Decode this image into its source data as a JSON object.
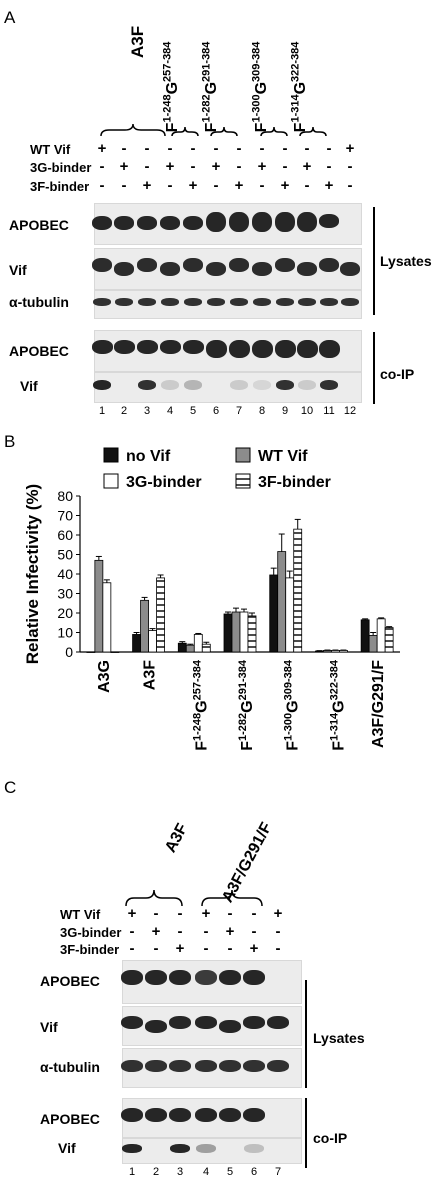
{
  "panelA": {
    "letter": "A",
    "constructs": [
      {
        "label": "A3F",
        "kind": "plain"
      },
      {
        "prefix": "F",
        "sup1": "1-248",
        "mid": "G",
        "sup2": "257-384",
        "kind": "chimera"
      },
      {
        "prefix": "F",
        "sup1": "1-282",
        "mid": "G",
        "sup2": "291-384",
        "kind": "chimera"
      },
      {
        "prefix": "F",
        "sup1": "1-300",
        "mid": "G",
        "sup2": "309-384",
        "kind": "chimera"
      },
      {
        "prefix": "F",
        "sup1": "1-314",
        "mid": "G",
        "sup2": "322-384",
        "kind": "chimera"
      }
    ],
    "conditions": [
      {
        "label": "WT Vif",
        "signs": [
          "+",
          "-",
          "-",
          "-",
          "-",
          "-",
          "-",
          "-",
          "-",
          "-",
          "-",
          "+"
        ]
      },
      {
        "label": "3G-binder",
        "signs": [
          "-",
          "+",
          "-",
          "+",
          "-",
          "+",
          "-",
          "+",
          "-",
          "+",
          "-",
          "-"
        ]
      },
      {
        "label": "3F-binder",
        "signs": [
          "-",
          "-",
          "+",
          "-",
          "+",
          "-",
          "+",
          "-",
          "+",
          "-",
          "+",
          "-"
        ]
      }
    ],
    "blots": [
      "APOBEC",
      "Vif",
      "α-tubulin",
      "APOBEC",
      "Vif"
    ],
    "side_labels": {
      "lysates": "Lysates",
      "coip": "co-IP"
    },
    "lanes": [
      "1",
      "2",
      "3",
      "4",
      "5",
      "6",
      "7",
      "8",
      "9",
      "10",
      "11",
      "12"
    ]
  },
  "panelB": {
    "letter": "B",
    "chart_data": {
      "type": "bar",
      "ylabel": "Relative Infectivity (%)",
      "ylim": [
        0,
        80
      ],
      "yticks": [
        "0",
        "10",
        "20",
        "30",
        "40",
        "50",
        "60",
        "70",
        "80"
      ],
      "categories": [
        {
          "label": "A3G",
          "kind": "plain"
        },
        {
          "label": "A3F",
          "kind": "plain"
        },
        {
          "prefix": "F",
          "sup1": "1-248",
          "mid": "G",
          "sup2": "257-384",
          "kind": "chimera"
        },
        {
          "prefix": "F",
          "sup1": "1-282",
          "mid": "G",
          "sup2": "291-384",
          "kind": "chimera"
        },
        {
          "prefix": "F",
          "sup1": "1-300",
          "mid": "G",
          "sup2": "309-384",
          "kind": "chimera"
        },
        {
          "prefix": "F",
          "sup1": "1-314",
          "mid": "G",
          "sup2": "322-384",
          "kind": "chimera"
        },
        {
          "label": "A3F/G291/F",
          "kind": "plain"
        }
      ],
      "series": [
        {
          "name": "no Vif",
          "color": "#111111",
          "values": [
            0,
            9,
            4.5,
            19.5,
            39.5,
            0.5,
            16.5
          ],
          "errors": [
            0,
            1,
            0.8,
            1,
            3.5,
            0.2,
            0.5
          ]
        },
        {
          "name": "WT Vif",
          "color": "#8c8c8c",
          "values": [
            47,
            26.5,
            3.5,
            20.5,
            51.5,
            0.8,
            8.5
          ],
          "errors": [
            2,
            1.5,
            0.5,
            2,
            9,
            0.2,
            1.5
          ]
        },
        {
          "name": "3G-binder",
          "color": "#ffffff",
          "values": [
            35.5,
            11,
            9,
            20.5,
            38,
            0.8,
            17
          ],
          "errors": [
            1.5,
            1,
            0.5,
            1.5,
            3.5,
            0.2,
            0.5
          ]
        },
        {
          "name": "3F-binder",
          "color": "#ffffff",
          "pattern": "stripes",
          "values": [
            0,
            38,
            4,
            18.5,
            63,
            0.8,
            12.5
          ],
          "errors": [
            0,
            1.5,
            1,
            1.5,
            5,
            0.2,
            0.5
          ]
        }
      ],
      "legend": "top"
    }
  },
  "panelC": {
    "letter": "C",
    "constructs": [
      {
        "label": "A3F"
      },
      {
        "label": "A3F/G291/F"
      }
    ],
    "conditions": [
      {
        "label": "WT Vif",
        "signs": [
          "+",
          "-",
          "-",
          "+",
          "-",
          "-",
          "+"
        ]
      },
      {
        "label": "3G-binder",
        "signs": [
          "-",
          "+",
          "-",
          "-",
          "+",
          "-",
          "-"
        ]
      },
      {
        "label": "3F-binder",
        "signs": [
          "-",
          "-",
          "+",
          "-",
          "-",
          "+",
          "-"
        ]
      }
    ],
    "blots": [
      "APOBEC",
      "Vif",
      "α-tubulin",
      "APOBEC",
      "Vif"
    ],
    "side_labels": {
      "lysates": "Lysates",
      "coip": "co-IP"
    },
    "lanes": [
      "1",
      "2",
      "3",
      "4",
      "5",
      "6",
      "7"
    ]
  }
}
